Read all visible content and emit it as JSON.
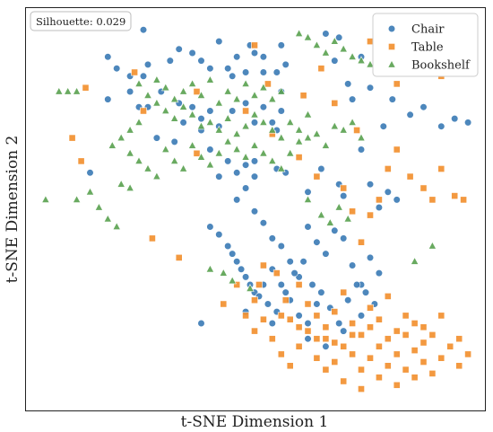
{
  "chart_data": {
    "type": "scatter",
    "title": "",
    "xlabel": "t-SNE Dimension 1",
    "ylabel": "t-SNE Dimension 2",
    "annotation": "Silhouette: 0.029",
    "xlim": [
      0,
      100
    ],
    "ylim": [
      0,
      100
    ],
    "grid": false,
    "legend_position": "top-right",
    "series": [
      {
        "name": "Chair",
        "marker": "circle",
        "color": "#3a7ab5",
        "points": [
          [
            25,
            96
          ],
          [
            42,
            93
          ],
          [
            46,
            89
          ],
          [
            56,
            92
          ],
          [
            66,
            95
          ],
          [
            69,
            94
          ],
          [
            68,
            88
          ],
          [
            74,
            89
          ],
          [
            78,
            87
          ],
          [
            82,
            93
          ],
          [
            83,
            87
          ],
          [
            71,
            82
          ],
          [
            72,
            78
          ],
          [
            76,
            81
          ],
          [
            81,
            78
          ],
          [
            79,
            71
          ],
          [
            85,
            74
          ],
          [
            88,
            76
          ],
          [
            92,
            71
          ],
          [
            95,
            73
          ],
          [
            98,
            72
          ],
          [
            33,
            91
          ],
          [
            31,
            88
          ],
          [
            36,
            90
          ],
          [
            38,
            88
          ],
          [
            40,
            86
          ],
          [
            44,
            86
          ],
          [
            45,
            84
          ],
          [
            48,
            85
          ],
          [
            49,
            92
          ],
          [
            50,
            90
          ],
          [
            52,
            85
          ],
          [
            52,
            89
          ],
          [
            55,
            85
          ],
          [
            56,
            80
          ],
          [
            57,
            87
          ],
          [
            17,
            89
          ],
          [
            19,
            86
          ],
          [
            26,
            87
          ],
          [
            25,
            84
          ],
          [
            22,
            84
          ],
          [
            17,
            78
          ],
          [
            22,
            80
          ],
          [
            24,
            76
          ],
          [
            26,
            76
          ],
          [
            29,
            80
          ],
          [
            33,
            77
          ],
          [
            36,
            76
          ],
          [
            38,
            73
          ],
          [
            40,
            75
          ],
          [
            42,
            71
          ],
          [
            45,
            75
          ],
          [
            48,
            77
          ],
          [
            50,
            72
          ],
          [
            52,
            76
          ],
          [
            54,
            72
          ],
          [
            56,
            75
          ],
          [
            55,
            70
          ],
          [
            50,
            62
          ],
          [
            55,
            60
          ],
          [
            57,
            59
          ],
          [
            62,
            54
          ],
          [
            65,
            60
          ],
          [
            69,
            56
          ],
          [
            70,
            53
          ],
          [
            74,
            65
          ],
          [
            76,
            56
          ],
          [
            78,
            50
          ],
          [
            80,
            54
          ],
          [
            82,
            52
          ],
          [
            28,
            68
          ],
          [
            32,
            67
          ],
          [
            34,
            72
          ],
          [
            38,
            70
          ],
          [
            40,
            65
          ],
          [
            44,
            62
          ],
          [
            46,
            59
          ],
          [
            48,
            61
          ],
          [
            50,
            58
          ],
          [
            13,
            59
          ],
          [
            42,
            58
          ],
          [
            46,
            52
          ],
          [
            48,
            55
          ],
          [
            50,
            49
          ],
          [
            52,
            46
          ],
          [
            54,
            42
          ],
          [
            56,
            40
          ],
          [
            58,
            36
          ],
          [
            60,
            32
          ],
          [
            62,
            45
          ],
          [
            64,
            41
          ],
          [
            66,
            38
          ],
          [
            68,
            44
          ],
          [
            70,
            42
          ],
          [
            72,
            35
          ],
          [
            74,
            30
          ],
          [
            76,
            37
          ],
          [
            78,
            33
          ],
          [
            40,
            45
          ],
          [
            42,
            43
          ],
          [
            44,
            40
          ],
          [
            46,
            36
          ],
          [
            48,
            32
          ],
          [
            50,
            28
          ],
          [
            52,
            30
          ],
          [
            54,
            34
          ],
          [
            56,
            30
          ],
          [
            58,
            26
          ],
          [
            60,
            22
          ],
          [
            62,
            20
          ],
          [
            64,
            25
          ],
          [
            45,
            38
          ],
          [
            47,
            34
          ],
          [
            49,
            30
          ],
          [
            51,
            27
          ],
          [
            53,
            25
          ],
          [
            55,
            23
          ],
          [
            57,
            28
          ],
          [
            59,
            33
          ],
          [
            61,
            36
          ],
          [
            63,
            30
          ],
          [
            65,
            28
          ],
          [
            67,
            24
          ],
          [
            69,
            20
          ],
          [
            71,
            26
          ],
          [
            73,
            30
          ],
          [
            75,
            28
          ],
          [
            77,
            25
          ],
          [
            38,
            20
          ],
          [
            48,
            23
          ],
          [
            54,
            20
          ],
          [
            62,
            16
          ],
          [
            66,
            14
          ],
          [
            70,
            18
          ],
          [
            74,
            22
          ]
        ]
      },
      {
        "name": "Table",
        "marker": "square",
        "color": "#f28e2b",
        "points": [
          [
            23,
            85
          ],
          [
            50,
            92
          ],
          [
            37,
            80
          ],
          [
            53,
            82
          ],
          [
            61,
            79
          ],
          [
            65,
            86
          ],
          [
            68,
            77
          ],
          [
            73,
            70
          ],
          [
            82,
            82
          ],
          [
            85,
            89
          ],
          [
            88,
            92
          ],
          [
            92,
            84
          ],
          [
            96,
            90
          ],
          [
            76,
            93
          ],
          [
            12,
            81
          ],
          [
            11,
            62
          ],
          [
            9,
            68
          ],
          [
            25,
            75
          ],
          [
            37,
            64
          ],
          [
            48,
            75
          ],
          [
            54,
            69
          ],
          [
            60,
            63
          ],
          [
            64,
            58
          ],
          [
            70,
            55
          ],
          [
            72,
            49
          ],
          [
            74,
            41
          ],
          [
            76,
            48
          ],
          [
            78,
            52
          ],
          [
            80,
            60
          ],
          [
            82,
            65
          ],
          [
            85,
            58
          ],
          [
            88,
            55
          ],
          [
            90,
            52
          ],
          [
            92,
            60
          ],
          [
            95,
            53
          ],
          [
            97,
            52
          ],
          [
            27,
            42
          ],
          [
            33,
            37
          ],
          [
            43,
            25
          ],
          [
            48,
            22
          ],
          [
            51,
            30
          ],
          [
            52,
            35
          ],
          [
            55,
            33
          ],
          [
            57,
            26
          ],
          [
            60,
            30
          ],
          [
            62,
            25
          ],
          [
            64,
            22
          ],
          [
            66,
            19
          ],
          [
            68,
            23
          ],
          [
            70,
            28
          ],
          [
            72,
            20
          ],
          [
            74,
            17
          ],
          [
            76,
            24
          ],
          [
            78,
            21
          ],
          [
            80,
            27
          ],
          [
            82,
            18
          ],
          [
            84,
            22
          ],
          [
            86,
            20
          ],
          [
            88,
            15
          ],
          [
            90,
            17
          ],
          [
            54,
            16
          ],
          [
            56,
            12
          ],
          [
            58,
            9
          ],
          [
            60,
            14
          ],
          [
            62,
            18
          ],
          [
            64,
            11
          ],
          [
            66,
            8
          ],
          [
            68,
            10
          ],
          [
            70,
            14
          ],
          [
            72,
            12
          ],
          [
            74,
            8
          ],
          [
            76,
            11
          ],
          [
            78,
            14
          ],
          [
            80,
            9
          ],
          [
            82,
            12
          ],
          [
            84,
            8
          ],
          [
            86,
            13
          ],
          [
            88,
            10
          ],
          [
            90,
            7
          ],
          [
            92,
            11
          ],
          [
            94,
            14
          ],
          [
            96,
            9
          ],
          [
            98,
            12
          ],
          [
            50,
            18
          ],
          [
            52,
            21
          ],
          [
            56,
            22
          ],
          [
            60,
            19
          ],
          [
            64,
            16
          ],
          [
            68,
            15
          ],
          [
            72,
            17
          ],
          [
            76,
            19
          ],
          [
            80,
            16
          ],
          [
            84,
            17
          ],
          [
            88,
            19
          ],
          [
            92,
            22
          ],
          [
            96,
            16
          ],
          [
            46,
            30
          ],
          [
            50,
            26
          ],
          [
            58,
            21
          ],
          [
            66,
            16
          ],
          [
            70,
            5
          ],
          [
            74,
            3
          ],
          [
            78,
            6
          ],
          [
            82,
            4
          ],
          [
            86,
            6
          ]
        ]
      },
      {
        "name": "Bookshelf",
        "marker": "triangle",
        "color": "#59a14f",
        "points": [
          [
            6,
            80
          ],
          [
            8,
            80
          ],
          [
            10,
            80
          ],
          [
            24,
            82
          ],
          [
            26,
            79
          ],
          [
            28,
            83
          ],
          [
            30,
            81
          ],
          [
            32,
            78
          ],
          [
            34,
            80
          ],
          [
            36,
            82
          ],
          [
            38,
            79
          ],
          [
            40,
            83
          ],
          [
            42,
            77
          ],
          [
            44,
            80
          ],
          [
            46,
            78
          ],
          [
            48,
            82
          ],
          [
            50,
            79
          ],
          [
            52,
            81
          ],
          [
            54,
            78
          ],
          [
            56,
            80
          ],
          [
            28,
            77
          ],
          [
            30,
            75
          ],
          [
            32,
            73
          ],
          [
            34,
            76
          ],
          [
            36,
            74
          ],
          [
            38,
            71
          ],
          [
            40,
            72
          ],
          [
            42,
            70
          ],
          [
            44,
            73
          ],
          [
            46,
            69
          ],
          [
            48,
            71
          ],
          [
            50,
            74
          ],
          [
            52,
            72
          ],
          [
            54,
            70
          ],
          [
            56,
            68
          ],
          [
            58,
            72
          ],
          [
            60,
            70
          ],
          [
            62,
            74
          ],
          [
            24,
            72
          ],
          [
            22,
            70
          ],
          [
            20,
            68
          ],
          [
            18,
            66
          ],
          [
            22,
            64
          ],
          [
            24,
            62
          ],
          [
            26,
            60
          ],
          [
            28,
            58
          ],
          [
            30,
            65
          ],
          [
            32,
            62
          ],
          [
            34,
            60
          ],
          [
            36,
            66
          ],
          [
            38,
            63
          ],
          [
            40,
            61
          ],
          [
            42,
            64
          ],
          [
            44,
            67
          ],
          [
            46,
            65
          ],
          [
            48,
            63
          ],
          [
            50,
            66
          ],
          [
            52,
            64
          ],
          [
            54,
            62
          ],
          [
            56,
            60
          ],
          [
            58,
            64
          ],
          [
            60,
            67
          ],
          [
            62,
            68
          ],
          [
            64,
            69
          ],
          [
            66,
            66
          ],
          [
            68,
            71
          ],
          [
            70,
            70
          ],
          [
            72,
            72
          ],
          [
            74,
            68
          ],
          [
            60,
            95
          ],
          [
            62,
            94
          ],
          [
            64,
            92
          ],
          [
            66,
            90
          ],
          [
            68,
            93
          ],
          [
            70,
            91
          ],
          [
            72,
            89
          ],
          [
            74,
            88
          ],
          [
            76,
            87
          ],
          [
            78,
            86
          ],
          [
            3,
            52
          ],
          [
            10,
            52
          ],
          [
            13,
            54
          ],
          [
            15,
            50
          ],
          [
            17,
            47
          ],
          [
            19,
            45
          ],
          [
            20,
            56
          ],
          [
            22,
            55
          ],
          [
            62,
            52
          ],
          [
            65,
            48
          ],
          [
            67,
            46
          ],
          [
            69,
            50
          ],
          [
            71,
            47
          ],
          [
            40,
            34
          ],
          [
            43,
            33
          ],
          [
            45,
            31
          ],
          [
            49,
            29
          ],
          [
            86,
            36
          ],
          [
            90,
            40
          ]
        ]
      }
    ]
  }
}
